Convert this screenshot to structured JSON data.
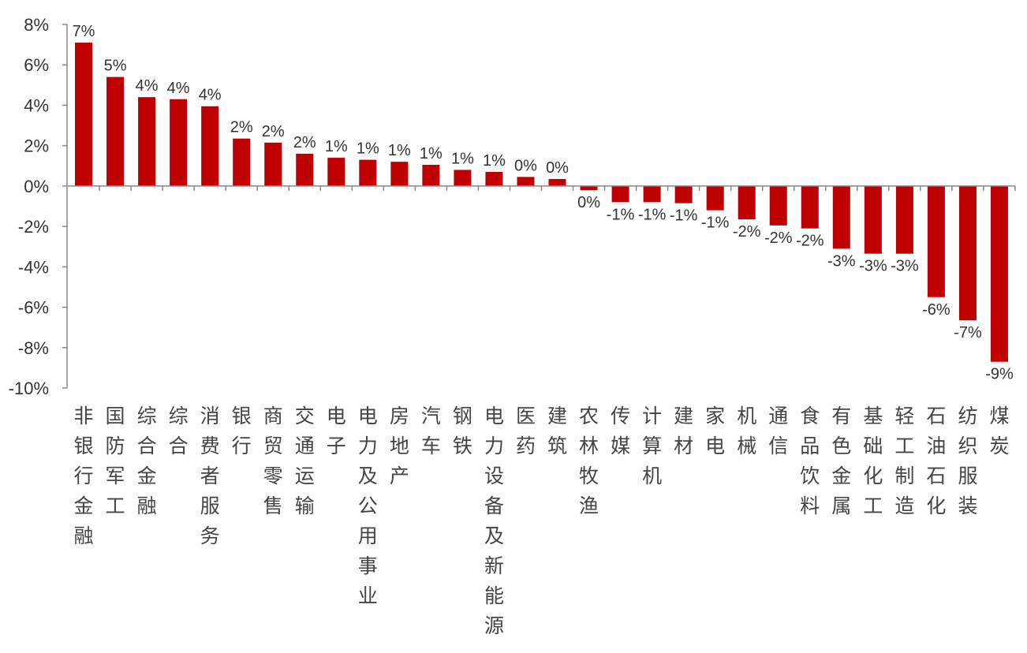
{
  "chart_data": {
    "type": "bar",
    "title": "",
    "xlabel": "",
    "ylabel": "",
    "ylim": [
      -10,
      8
    ],
    "yticks": [
      8,
      6,
      4,
      2,
      0,
      -2,
      -4,
      -6,
      -8,
      -10
    ],
    "ytick_labels": [
      "8%",
      "6%",
      "4%",
      "2%",
      "0%",
      "-2%",
      "-4%",
      "-6%",
      "-8%",
      "-10%"
    ],
    "grid": false,
    "legend": "none",
    "colors": {
      "bar": "#C00000",
      "axis": "#888888"
    },
    "categories": [
      "非银行金融",
      "国防军工",
      "综合金融",
      "综合",
      "消费者服务",
      "银行",
      "商贸零售",
      "交通运输",
      "电子",
      "电力及公用事业",
      "房地产",
      "汽车",
      "钢铁",
      "电力设备及新能源",
      "医药",
      "建筑",
      "农林牧渔",
      "传媒",
      "计算机",
      "建材",
      "家电",
      "机械",
      "通信",
      "食品饮料",
      "有色金属",
      "基础化工",
      "轻工制造",
      "石油石化",
      "纺织服装",
      "煤炭"
    ],
    "values": [
      7.1,
      5.4,
      4.4,
      4.3,
      3.95,
      2.35,
      2.15,
      1.6,
      1.4,
      1.3,
      1.2,
      1.05,
      0.8,
      0.7,
      0.45,
      0.35,
      -0.2,
      -0.8,
      -0.8,
      -0.85,
      -1.2,
      -1.65,
      -1.95,
      -2.1,
      -3.1,
      -3.35,
      -3.35,
      -5.5,
      -6.65,
      -8.7
    ],
    "data_labels": [
      "7%",
      "5%",
      "4%",
      "4%",
      "4%",
      "2%",
      "2%",
      "2%",
      "1%",
      "1%",
      "1%",
      "1%",
      "1%",
      "1%",
      "0%",
      "0%",
      "0%",
      "-1%",
      "-1%",
      "-1%",
      "-1%",
      "-2%",
      "-2%",
      "-2%",
      "-3%",
      "-3%",
      "-3%",
      "-6%",
      "-7%",
      "-9%"
    ]
  }
}
